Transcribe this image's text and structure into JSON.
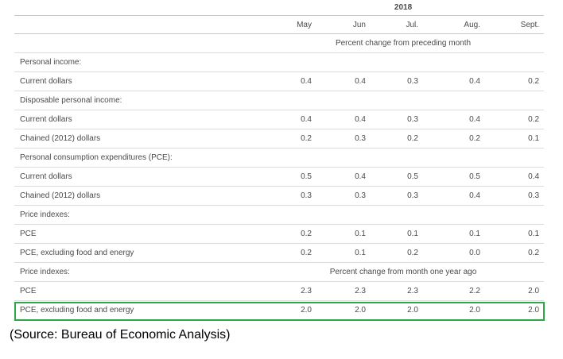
{
  "header": {
    "year": "2018",
    "months": [
      "May",
      "Jun",
      "Jul.",
      "Aug.",
      "Sept."
    ]
  },
  "units": {
    "monthly": "Percent change from preceding month",
    "yearly": "Percent change from month one year ago"
  },
  "rows": [
    {
      "label": "Personal income:",
      "type": "section"
    },
    {
      "label": "Current dollars",
      "values": [
        "0.4",
        "0.4",
        "0.3",
        "0.4",
        "0.2"
      ]
    },
    {
      "label": "Disposable personal income:",
      "type": "section"
    },
    {
      "label": "Current dollars",
      "values": [
        "0.4",
        "0.4",
        "0.3",
        "0.4",
        "0.2"
      ]
    },
    {
      "label": "Chained (2012) dollars",
      "values": [
        "0.2",
        "0.3",
        "0.2",
        "0.2",
        "0.1"
      ]
    },
    {
      "label": "Personal consumption expenditures (PCE):",
      "type": "section"
    },
    {
      "label": "Current dollars",
      "values": [
        "0.5",
        "0.4",
        "0.5",
        "0.5",
        "0.4"
      ]
    },
    {
      "label": "Chained (2012) dollars",
      "values": [
        "0.3",
        "0.3",
        "0.3",
        "0.4",
        "0.3"
      ]
    },
    {
      "label": "Price indexes:",
      "type": "section"
    },
    {
      "label": "PCE",
      "values": [
        "0.2",
        "0.1",
        "0.1",
        "0.1",
        "0.1"
      ]
    },
    {
      "label": "PCE, excluding food and energy",
      "values": [
        "0.2",
        "0.1",
        "0.2",
        "0.0",
        "0.2"
      ]
    },
    {
      "label": "Price indexes:",
      "type": "section"
    },
    {
      "label": "PCE",
      "values": [
        "2.3",
        "2.3",
        "2.3",
        "2.2",
        "2.0"
      ]
    },
    {
      "label": "PCE, excluding food and energy",
      "values": [
        "2.0",
        "2.0",
        "2.0",
        "2.0",
        "2.0"
      ],
      "highlighted": true
    }
  ],
  "source": "(Source: Bureau of Economic Analysis)",
  "colors": {
    "highlight_border": "#2ba84a",
    "text": "#4a4a4a",
    "rule": "#dcdcdc"
  }
}
